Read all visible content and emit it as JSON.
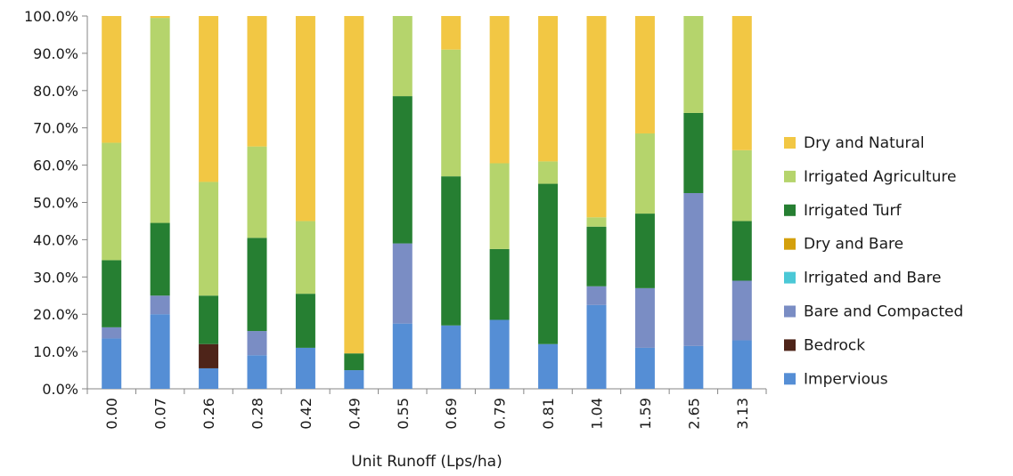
{
  "chart_data": {
    "type": "bar",
    "stacked": true,
    "title": "",
    "xlabel": "Unit Runoff (Lps/ha)",
    "ylabel": "",
    "ylim": [
      0,
      100
    ],
    "y_tick_labels": [
      "0.0%",
      "10.0%",
      "20.0%",
      "30.0%",
      "40.0%",
      "50.0%",
      "60.0%",
      "70.0%",
      "80.0%",
      "90.0%",
      "100.0%"
    ],
    "grid": false,
    "legend_position": "right",
    "categories": [
      "0.00",
      "0.07",
      "0.26",
      "0.28",
      "0.42",
      "0.49",
      "0.55",
      "0.69",
      "0.79",
      "0.81",
      "1.04",
      "1.59",
      "2.65",
      "3.13"
    ],
    "series": [
      {
        "name": "Impervious",
        "color": "#558ED5",
        "values": [
          13.5,
          20,
          5.5,
          9,
          11,
          5,
          17.5,
          17,
          18.5,
          12,
          22.5,
          11,
          11.5,
          13
        ]
      },
      {
        "name": "Bedrock",
        "color": "#4E2419",
        "values": [
          0,
          0,
          6.5,
          0,
          0,
          0,
          0,
          0,
          0,
          0,
          0,
          0,
          0,
          0
        ]
      },
      {
        "name": "Bare and Compacted",
        "color": "#7A8DC4",
        "values": [
          3,
          5,
          0,
          6.5,
          0,
          0,
          21.5,
          0,
          0,
          0,
          5,
          16,
          41,
          16
        ]
      },
      {
        "name": "Irrigated and Bare",
        "color": "#4BC8D6",
        "values": [
          0,
          0,
          0,
          0,
          0,
          0,
          0,
          0,
          0,
          0,
          0,
          0,
          0,
          0
        ]
      },
      {
        "name": "Dry and Bare",
        "color": "#D4A00C",
        "values": [
          0,
          0,
          0,
          0,
          0,
          0,
          0,
          0,
          0,
          0,
          0,
          0,
          0,
          0
        ]
      },
      {
        "name": "Irrigated Turf",
        "color": "#267F32",
        "values": [
          18,
          19.5,
          13,
          25,
          14.5,
          4.5,
          39.5,
          40,
          19,
          43,
          16,
          20,
          21.5,
          16
        ]
      },
      {
        "name": "Irrigated Agriculture",
        "color": "#B5D46C",
        "values": [
          31.5,
          55,
          30.5,
          24.5,
          19.5,
          0,
          21.5,
          34,
          23,
          6,
          2.5,
          21.5,
          26,
          19
        ]
      },
      {
        "name": "Dry and Natural",
        "color": "#F2C744",
        "values": [
          34,
          0.5,
          44.5,
          35,
          55,
          90.5,
          0,
          9,
          39.5,
          39,
          54,
          31.5,
          0,
          36
        ]
      }
    ]
  }
}
